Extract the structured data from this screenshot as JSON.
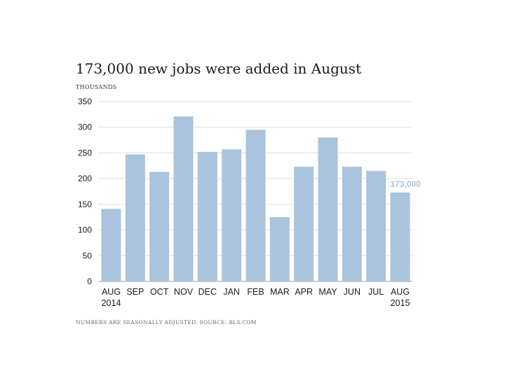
{
  "colors": {
    "bar": "#a9c4dc",
    "highlight_label": "#a9c4dc",
    "gridline": "#dddddd",
    "baseline": "#999999"
  },
  "chart_data": {
    "type": "bar",
    "title": "173,000 new jobs were added in August",
    "unit_label": "THOUSANDS",
    "note": "NUMBERS ARE SEASONALLY ADJUSTED. SOURCE: BLS.COM",
    "categories": [
      "AUG",
      "SEP",
      "OCT",
      "NOV",
      "DEC",
      "JAN",
      "FEB",
      "MAR",
      "APR",
      "MAY",
      "JUN",
      "JUL",
      "AUG"
    ],
    "sublabels": [
      "2014",
      "",
      "",
      "",
      "",
      "",
      "",
      "",
      "",
      "",
      "",
      "",
      "2015"
    ],
    "values": [
      141,
      247,
      213,
      321,
      252,
      257,
      295,
      125,
      223,
      280,
      223,
      215,
      173
    ],
    "ylim": [
      0,
      350
    ],
    "yticks": [
      0,
      50,
      100,
      150,
      200,
      250,
      300,
      350
    ],
    "grid": true,
    "annotation": {
      "index": 12,
      "text": "173,000"
    }
  }
}
